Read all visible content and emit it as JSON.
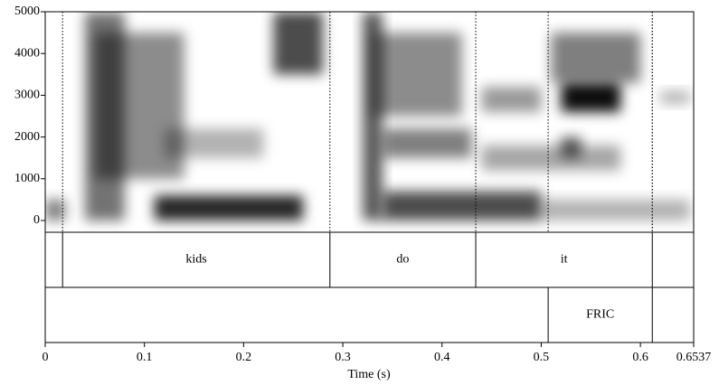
{
  "chart_data": {
    "type": "spectrogram",
    "x_label": "Time (s)",
    "xlim": [
      0,
      0.6537
    ],
    "xticks": [
      0,
      0.1,
      0.2,
      0.3,
      0.4,
      0.5,
      0.6,
      0.6537
    ],
    "ylim": [
      0,
      5000
    ],
    "yticks": [
      0,
      1000,
      2000,
      3000,
      4000,
      5000
    ],
    "energy": [
      {
        "t": [
          0.0,
          0.02
        ],
        "f": [
          0,
          500
        ],
        "level": 0.5
      },
      {
        "t": [
          0.04,
          0.08
        ],
        "f": [
          0,
          5000
        ],
        "level": 0.55
      },
      {
        "t": [
          0.05,
          0.14
        ],
        "f": [
          1000,
          4500
        ],
        "level": 0.45
      },
      {
        "t": [
          0.11,
          0.26
        ],
        "f": [
          0,
          600
        ],
        "level": 0.85
      },
      {
        "t": [
          0.12,
          0.22
        ],
        "f": [
          1500,
          2200
        ],
        "level": 0.3
      },
      {
        "t": [
          0.23,
          0.28
        ],
        "f": [
          3500,
          5000
        ],
        "level": 0.7
      },
      {
        "t": [
          0.32,
          0.34
        ],
        "f": [
          0,
          5000
        ],
        "level": 0.65
      },
      {
        "t": [
          0.33,
          0.42
        ],
        "f": [
          2500,
          4500
        ],
        "level": 0.45
      },
      {
        "t": [
          0.34,
          0.43
        ],
        "f": [
          1500,
          2200
        ],
        "level": 0.5
      },
      {
        "t": [
          0.34,
          0.5
        ],
        "f": [
          0,
          700
        ],
        "level": 0.7
      },
      {
        "t": [
          0.44,
          0.5
        ],
        "f": [
          2600,
          3200
        ],
        "level": 0.4
      },
      {
        "t": [
          0.44,
          0.58
        ],
        "f": [
          1200,
          1800
        ],
        "level": 0.35
      },
      {
        "t": [
          0.52,
          0.58
        ],
        "f": [
          2600,
          3300
        ],
        "level": 0.95
      },
      {
        "t": [
          0.51,
          0.6
        ],
        "f": [
          3300,
          4500
        ],
        "level": 0.5
      },
      {
        "t": [
          0.52,
          0.54
        ],
        "f": [
          1500,
          2000
        ],
        "level": 0.6
      },
      {
        "t": [
          0.5,
          0.65
        ],
        "f": [
          0,
          500
        ],
        "level": 0.3
      },
      {
        "t": [
          0.62,
          0.65
        ],
        "f": [
          2800,
          3100
        ],
        "level": 0.3
      }
    ],
    "tiers": [
      {
        "boundaries": [
          0.0175,
          0.287,
          0.434,
          0.612
        ],
        "intervals": [
          {
            "start": 0.0175,
            "end": 0.287,
            "label": "kids"
          },
          {
            "start": 0.287,
            "end": 0.434,
            "label": "do"
          },
          {
            "start": 0.434,
            "end": 0.612,
            "label": "it"
          }
        ]
      },
      {
        "boundaries": [
          0.507,
          0.612
        ],
        "intervals": [
          {
            "start": 0.507,
            "end": 0.612,
            "label": "FRIC"
          }
        ]
      }
    ]
  }
}
